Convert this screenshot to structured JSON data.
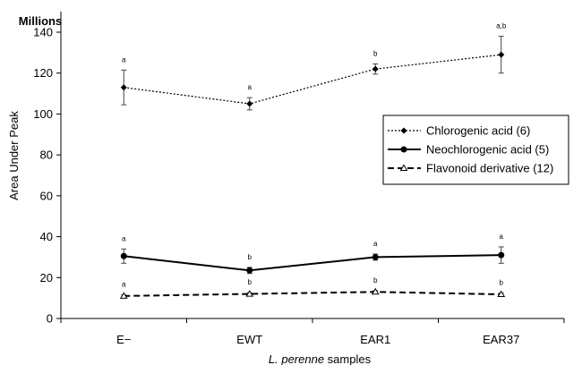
{
  "chart_data": {
    "type": "line",
    "categories": [
      "E−",
      "EWT",
      "EAR1",
      "EAR37"
    ],
    "xlabel_italic": "L. perenne",
    "xlabel_rest": " samples",
    "ylabel": "Area Under Peak",
    "y_unit": "Millions",
    "ylim": [
      0,
      150
    ],
    "yticks": [
      0,
      20,
      40,
      60,
      80,
      100,
      120,
      140
    ],
    "grid": false,
    "legend_position": "right",
    "series": [
      {
        "name": "Chlorogenic acid (6)",
        "style": "dotted",
        "marker": "diamond",
        "values": [
          113,
          105,
          122,
          129
        ],
        "errors": [
          8.5,
          3,
          2.5,
          9
        ],
        "labels": [
          "a",
          "a",
          "b",
          "a,b"
        ]
      },
      {
        "name": "Neochlorogenic acid (5)",
        "style": "solid",
        "marker": "circle",
        "values": [
          30.5,
          23.5,
          30,
          31
        ],
        "errors": [
          3.5,
          1.5,
          1.5,
          4
        ],
        "labels": [
          "a",
          "b",
          "a",
          "a"
        ]
      },
      {
        "name": "Flavonoid derivative (12)",
        "style": "dashed",
        "marker": "triangle",
        "values": [
          11,
          12,
          13,
          11.8
        ],
        "errors": [
          0.6,
          0.6,
          0.6,
          0.6
        ],
        "labels": [
          "a",
          "b",
          "b",
          "b"
        ]
      }
    ]
  }
}
